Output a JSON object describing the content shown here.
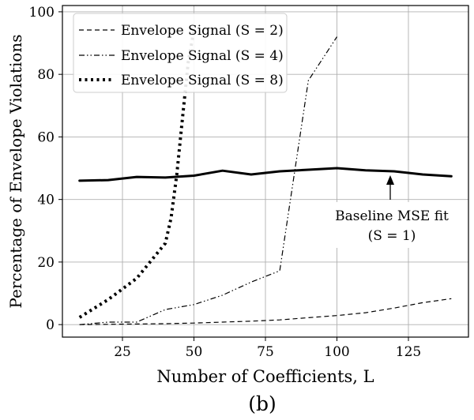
{
  "chart_data": {
    "type": "line",
    "title": "",
    "subtitle": "(b)",
    "xlabel": "Number of Coefficients, L",
    "ylabel": "Percentage of Envelope Violations",
    "xlim": [
      4,
      146
    ],
    "ylim": [
      -4,
      102
    ],
    "xticks": [
      25,
      50,
      75,
      100,
      125
    ],
    "yticks": [
      0,
      20,
      40,
      60,
      80,
      100
    ],
    "grid": true,
    "legend_position": "top-left",
    "series": [
      {
        "name": "Envelope Signal (S = 2)",
        "style": "dashed",
        "color": "#000000",
        "x": [
          10,
          20,
          30,
          40,
          50,
          60,
          70,
          80,
          90,
          100,
          110,
          120,
          130,
          140
        ],
        "y": [
          0,
          0.1,
          0.2,
          0.3,
          0.5,
          0.8,
          1.1,
          1.5,
          2.2,
          2.9,
          3.8,
          5.3,
          7.0,
          8.3
        ]
      },
      {
        "name": "Envelope Signal (S = 4)",
        "style": "dashdotdot",
        "color": "#000000",
        "x": [
          10,
          20,
          30,
          40,
          50,
          60,
          70,
          80,
          90,
          100
        ],
        "y": [
          0,
          0.8,
          0.8,
          4.8,
          6.4,
          9.4,
          13.6,
          17.2,
          78,
          92
        ]
      },
      {
        "name": "Envelope Signal (S = 8)",
        "style": "dotted",
        "color": "#000000",
        "x": [
          10,
          20,
          30,
          40,
          42,
          44,
          46,
          48,
          50
        ],
        "y": [
          2.3,
          8.0,
          14.8,
          26.0,
          34.0,
          48.0,
          66.0,
          84.0,
          94.0
        ]
      },
      {
        "name": "Baseline MSE fit (S = 1)",
        "style": "solid-thick",
        "color": "#000000",
        "x": [
          10,
          20,
          30,
          40,
          50,
          60,
          70,
          80,
          90,
          100,
          110,
          120,
          130,
          140
        ],
        "y": [
          46.0,
          46.2,
          47.2,
          47.0,
          47.6,
          49.2,
          48.0,
          49.0,
          49.5,
          50.0,
          49.3,
          49.0,
          48.0,
          47.4
        ]
      }
    ],
    "legend": [
      {
        "label": "Envelope Signal (S = 2)",
        "style": "dashed"
      },
      {
        "label": "Envelope Signal (S = 4)",
        "style": "dashdotdot"
      },
      {
        "label": "Envelope Signal (S = 8)",
        "style": "dotted"
      }
    ],
    "annotation": {
      "line1": "Baseline MSE fit",
      "line2": "(S = 1)",
      "points_to": {
        "x": 120,
        "y": 49.0
      }
    }
  }
}
